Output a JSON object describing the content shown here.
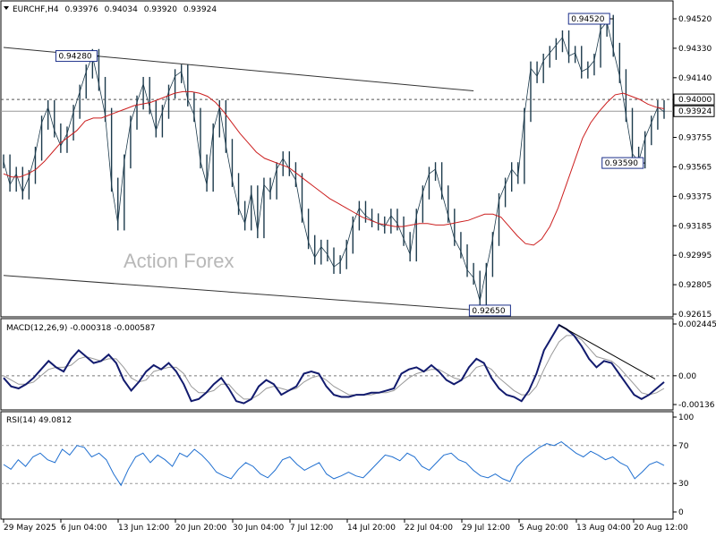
{
  "chart_data": {
    "type": "line",
    "header": {
      "symbol": "EURCHF,H4",
      "open": "0.93976",
      "high": "0.94034",
      "low": "0.93920",
      "close": "0.93924"
    },
    "watermark": "Action Forex",
    "x_labels": [
      "29 May 2025",
      "6 Jun 04:00",
      "13 Jun 12:00",
      "20 Jun 20:00",
      "30 Jun 04:00",
      "7 Jul 12:00",
      "14 Jul 20:00",
      "22 Jul 04:00",
      "29 Jul 12:00",
      "5 Aug 20:00",
      "13 Aug 04:00",
      "20 Aug 12:00"
    ],
    "price": {
      "ylim": [
        0.92615,
        0.9452
      ],
      "ticks": [
        "0.94520",
        "0.94330",
        "0.94140",
        "0.94000",
        "0.93924",
        "0.93755",
        "0.93565",
        "0.93375",
        "0.93185",
        "0.92995",
        "0.92805",
        "0.92615"
      ],
      "tick_values": [
        0.9452,
        0.9433,
        0.9414,
        0.94,
        0.93924,
        0.93755,
        0.93565,
        0.93375,
        0.93185,
        0.92995,
        0.92805,
        0.92615
      ],
      "close_series": [
        0.936,
        0.9345,
        0.9352,
        0.934,
        0.935,
        0.9365,
        0.9385,
        0.9395,
        0.938,
        0.937,
        0.9378,
        0.9392,
        0.9405,
        0.9418,
        0.9428,
        0.941,
        0.939,
        0.9345,
        0.932,
        0.936,
        0.9385,
        0.9398,
        0.941,
        0.9395,
        0.938,
        0.9392,
        0.9405,
        0.9415,
        0.9418,
        0.94,
        0.939,
        0.936,
        0.9345,
        0.938,
        0.9395,
        0.937,
        0.9348,
        0.933,
        0.932,
        0.934,
        0.9315,
        0.9345,
        0.934,
        0.9355,
        0.9362,
        0.9355,
        0.9348,
        0.9325,
        0.9308,
        0.9298,
        0.9305,
        0.93,
        0.9292,
        0.9295,
        0.9305,
        0.932,
        0.933,
        0.9325,
        0.9322,
        0.932,
        0.9318,
        0.9325,
        0.932,
        0.931,
        0.93,
        0.9325,
        0.934,
        0.9352,
        0.9355,
        0.934,
        0.9325,
        0.931,
        0.9302,
        0.929,
        0.9285,
        0.927,
        0.929,
        0.931,
        0.9335,
        0.9345,
        0.9355,
        0.935,
        0.939,
        0.942,
        0.9415,
        0.9425,
        0.943,
        0.9435,
        0.944,
        0.9428,
        0.943,
        0.9418,
        0.942,
        0.9425,
        0.9445,
        0.945,
        0.9432,
        0.9415,
        0.939,
        0.9365,
        0.936,
        0.9375,
        0.9385,
        0.9395,
        0.9392
      ],
      "ma_series": [
        0.9352,
        0.935,
        0.935,
        0.9352,
        0.9355,
        0.936,
        0.9366,
        0.9372,
        0.9376,
        0.938,
        0.9386,
        0.9388,
        0.9388,
        0.939,
        0.9392,
        0.9394,
        0.9396,
        0.9397,
        0.9398,
        0.94,
        0.9402,
        0.9404,
        0.9405,
        0.9405,
        0.9404,
        0.9402,
        0.9398,
        0.9392,
        0.9385,
        0.9378,
        0.9372,
        0.9366,
        0.9362,
        0.936,
        0.9358,
        0.9356,
        0.9352,
        0.9348,
        0.9344,
        0.934,
        0.9336,
        0.9333,
        0.933,
        0.9327,
        0.9324,
        0.9322,
        0.932,
        0.9319,
        0.9318,
        0.9318,
        0.9319,
        0.932,
        0.932,
        0.9319,
        0.9319,
        0.932,
        0.9321,
        0.9322,
        0.9324,
        0.9326,
        0.9326,
        0.9324,
        0.9318,
        0.9312,
        0.9307,
        0.9306,
        0.931,
        0.9318,
        0.933,
        0.9345,
        0.936,
        0.9375,
        0.9385,
        0.9392,
        0.9398,
        0.9403,
        0.9404,
        0.9402,
        0.94,
        0.9397,
        0.9395,
        0.9394
      ],
      "annotations": [
        {
          "label": "0.94280",
          "i": 15,
          "value": 0.9428
        },
        {
          "label": "0.94520",
          "i": 96,
          "value": 0.9452
        },
        {
          "label": "0.93590",
          "i": 101,
          "value": 0.9359
        },
        {
          "label": "0.92650",
          "i": 77,
          "value": 0.9265
        }
      ],
      "hlines": [
        {
          "label": "0.94000",
          "value": 0.94,
          "style": "dashed"
        },
        {
          "label": "0.93924",
          "value": 0.93924,
          "style": "solid"
        }
      ],
      "trendlines": [
        {
          "from": [
            0,
            0.94335
          ],
          "to": [
            74,
            0.94055
          ]
        },
        {
          "from": [
            0,
            0.92865
          ],
          "to": [
            78,
            0.9263
          ]
        }
      ]
    },
    "macd": {
      "label": "MACD(12,26,9) -0.000318 -0.000587",
      "ylim": [
        -0.00136,
        0.002445
      ],
      "ticks": [
        "0.002445",
        "0.00",
        "-0.00136"
      ],
      "tick_values": [
        0.002445,
        0.0,
        -0.00136
      ],
      "values": [
        -0.0001,
        -0.0005,
        -0.0006,
        -0.0004,
        -0.0001,
        0.0003,
        0.0007,
        0.0004,
        0.0002,
        0.0008,
        0.0012,
        0.0009,
        0.0006,
        0.0007,
        0.001,
        0.0006,
        -0.0002,
        -0.0007,
        -0.0003,
        0.0002,
        0.0005,
        0.0003,
        0.0006,
        0.0002,
        -0.0004,
        -0.0012,
        -0.0011,
        -0.0008,
        -0.0004,
        -0.0001,
        -0.0006,
        -0.0012,
        -0.0013,
        -0.0011,
        -0.0005,
        -0.0002,
        -0.0004,
        -0.0009,
        -0.0007,
        -0.0005,
        0.0001,
        0.0002,
        0.0001,
        -0.0005,
        -0.0009,
        -0.001,
        -0.001,
        -0.0009,
        -0.0009,
        -0.0008,
        -0.0008,
        -0.0007,
        -0.0006,
        0.0001,
        0.0003,
        0.0004,
        0.0002,
        0.0005,
        0.0002,
        -0.0002,
        -0.0004,
        -0.0002,
        0.0004,
        0.0008,
        0.0006,
        -0.0001,
        -0.0006,
        -0.0009,
        -0.001,
        -0.0012,
        -0.0007,
        0.0001,
        0.0012,
        0.0018,
        0.0024,
        0.0022,
        0.0019,
        0.0014,
        0.0008,
        0.0004,
        0.0007,
        0.0006,
        0.0001,
        -0.0004,
        -0.0009,
        -0.0011,
        -0.0009,
        -0.0006,
        -0.0003
      ],
      "signal": [
        0.0,
        -0.0002,
        -0.0004,
        -0.0004,
        -0.0003,
        0.0,
        0.0003,
        0.0004,
        0.0004,
        0.0005,
        0.0008,
        0.0009,
        0.0008,
        0.0007,
        0.0008,
        0.0008,
        0.0004,
        -0.0001,
        -0.0003,
        -0.0002,
        0.0002,
        0.0003,
        0.0004,
        0.0004,
        0.0001,
        -0.0005,
        -0.0008,
        -0.0008,
        -0.0007,
        -0.0004,
        -0.0004,
        -0.0008,
        -0.0011,
        -0.0011,
        -0.0009,
        -0.0006,
        -0.0005,
        -0.0006,
        -0.0007,
        -0.0006,
        -0.0003,
        -0.0001,
        0.0,
        -0.0002,
        -0.0005,
        -0.0007,
        -0.0009,
        -0.0009,
        -0.0009,
        -0.0009,
        -0.0008,
        -0.0008,
        -0.0007,
        -0.0004,
        -0.0001,
        0.0001,
        0.0002,
        0.0003,
        0.0003,
        0.0001,
        -0.0001,
        -0.0002,
        0.0,
        0.0004,
        0.0005,
        0.0003,
        -0.0001,
        -0.0004,
        -0.0007,
        -0.0009,
        -0.0009,
        -0.0005,
        0.0003,
        0.001,
        0.0016,
        0.0019,
        0.0019,
        0.0017,
        0.0013,
        0.0009,
        0.0008,
        0.0007,
        0.0004,
        0.0,
        -0.0004,
        -0.0008,
        -0.0009,
        -0.0008,
        -0.0006
      ]
    },
    "rsi": {
      "label": "RSI(14) 49.0812",
      "ylim": [
        0,
        100
      ],
      "ticks": [
        "100",
        "70",
        "30",
        "0"
      ],
      "tick_values": [
        100,
        70,
        30,
        0
      ],
      "values": [
        50,
        45,
        55,
        48,
        58,
        62,
        55,
        52,
        66,
        60,
        70,
        68,
        58,
        62,
        55,
        40,
        28,
        45,
        58,
        62,
        52,
        60,
        55,
        48,
        62,
        58,
        66,
        60,
        52,
        42,
        38,
        35,
        45,
        52,
        48,
        40,
        36,
        44,
        55,
        58,
        50,
        44,
        48,
        52,
        40,
        35,
        38,
        42,
        38,
        36,
        44,
        52,
        60,
        58,
        54,
        62,
        58,
        48,
        44,
        52,
        60,
        62,
        55,
        52,
        44,
        38,
        36,
        40,
        35,
        32,
        48,
        56,
        62,
        68,
        72,
        70,
        74,
        68,
        62,
        58,
        64,
        60,
        55,
        58,
        52,
        48,
        35,
        42,
        50,
        53,
        49
      ]
    }
  }
}
